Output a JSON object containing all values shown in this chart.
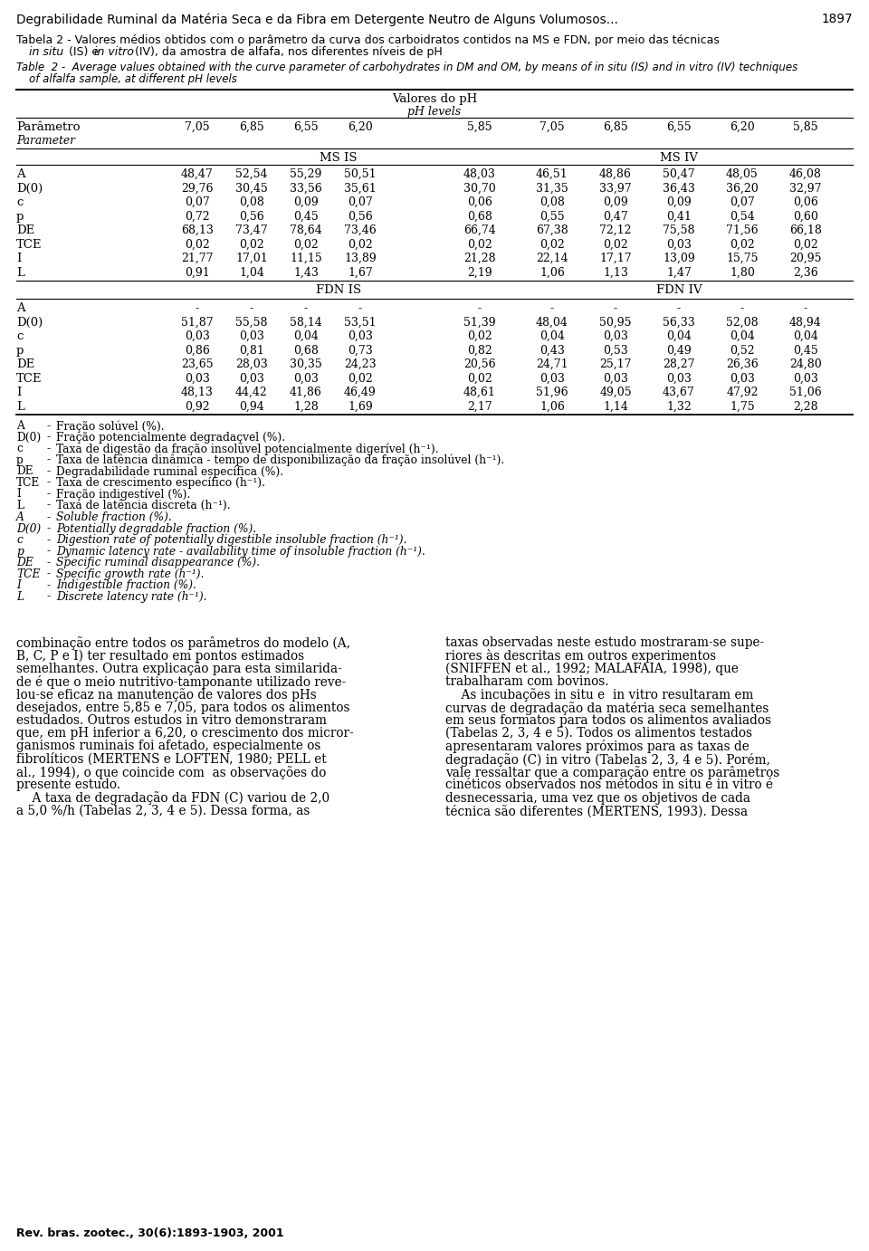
{
  "page_title": "Degrabilidade Ruminal da Matéria Seca e da Fibra em Detergente Neutro de Alguns Volumosos...",
  "page_number": "1897",
  "ph_levels": [
    "7,05",
    "6,85",
    "6,55",
    "6,20",
    "5,85",
    "7,05",
    "6,85",
    "6,55",
    "6,20",
    "5,85"
  ],
  "ms_is_data": {
    "A": [
      "48,47",
      "52,54",
      "55,29",
      "50,51",
      "48,03",
      "46,51",
      "48,86",
      "50,47",
      "48,05",
      "46,08"
    ],
    "D(0)": [
      "29,76",
      "30,45",
      "33,56",
      "35,61",
      "30,70",
      "31,35",
      "33,97",
      "36,43",
      "36,20",
      "32,97"
    ],
    "c": [
      "0,07",
      "0,08",
      "0,09",
      "0,07",
      "0,06",
      "0,08",
      "0,09",
      "0,09",
      "0,07",
      "0,06"
    ],
    "p": [
      "0,72",
      "0,56",
      "0,45",
      "0,56",
      "0,68",
      "0,55",
      "0,47",
      "0,41",
      "0,54",
      "0,60"
    ],
    "DE": [
      "68,13",
      "73,47",
      "78,64",
      "73,46",
      "66,74",
      "67,38",
      "72,12",
      "75,58",
      "71,56",
      "66,18"
    ],
    "TCE": [
      "0,02",
      "0,02",
      "0,02",
      "0,02",
      "0,02",
      "0,02",
      "0,02",
      "0,03",
      "0,02",
      "0,02"
    ],
    "I": [
      "21,77",
      "17,01",
      "11,15",
      "13,89",
      "21,28",
      "22,14",
      "17,17",
      "13,09",
      "15,75",
      "20,95"
    ],
    "L": [
      "0,91",
      "1,04",
      "1,43",
      "1,67",
      "2,19",
      "1,06",
      "1,13",
      "1,47",
      "1,80",
      "2,36"
    ]
  },
  "fdn_data": {
    "A": [
      "-",
      "-",
      "-",
      "-",
      "-",
      "-",
      "-",
      "-",
      "-",
      "-"
    ],
    "D(0)": [
      "51,87",
      "55,58",
      "58,14",
      "53,51",
      "51,39",
      "48,04",
      "50,95",
      "56,33",
      "52,08",
      "48,94"
    ],
    "c": [
      "0,03",
      "0,03",
      "0,04",
      "0,03",
      "0,02",
      "0,04",
      "0,03",
      "0,04",
      "0,04",
      "0,04"
    ],
    "p": [
      "0,86",
      "0,81",
      "0,68",
      "0,73",
      "0,82",
      "0,43",
      "0,53",
      "0,49",
      "0,52",
      "0,45"
    ],
    "DE": [
      "23,65",
      "28,03",
      "30,35",
      "24,23",
      "20,56",
      "24,71",
      "25,17",
      "28,27",
      "26,36",
      "24,80"
    ],
    "TCE": [
      "0,03",
      "0,03",
      "0,03",
      "0,02",
      "0,02",
      "0,03",
      "0,03",
      "0,03",
      "0,03",
      "0,03"
    ],
    "I": [
      "48,13",
      "44,42",
      "41,86",
      "46,49",
      "48,61",
      "51,96",
      "49,05",
      "43,67",
      "47,92",
      "51,06"
    ],
    "L": [
      "0,92",
      "0,94",
      "1,28",
      "1,69",
      "2,17",
      "1,06",
      "1,14",
      "1,32",
      "1,75",
      "2,28"
    ]
  },
  "journal_footer": "Rev. bras. zootec., 30(6):1893-1903, 2001"
}
